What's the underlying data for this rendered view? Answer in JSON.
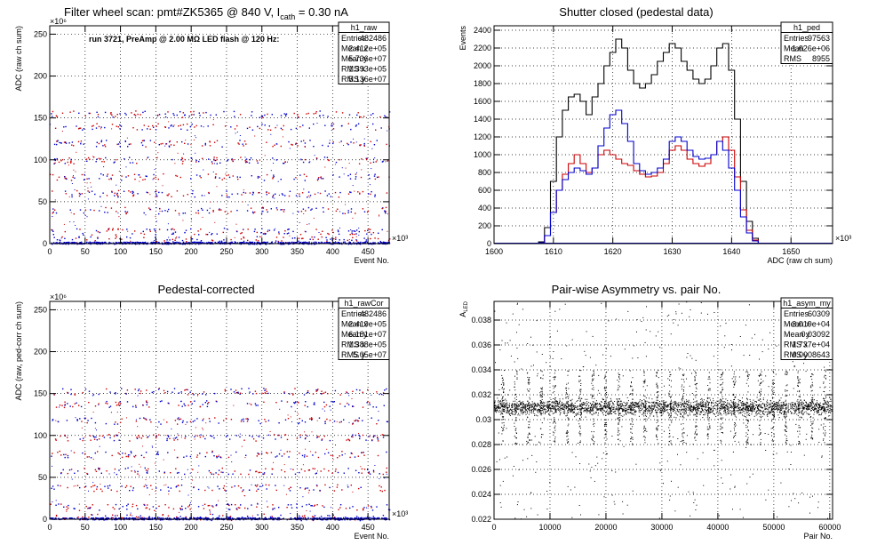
{
  "chart_data": [
    {
      "type": "scatter",
      "title": "Filter wheel scan: pmt#ZK5365 @   840 V, I",
      "title_sub": "cath",
      "title_tail": " = 0.30 nA",
      "annotation": "run 3721, PreAmp @ 2.00 MΩ LED flash @  120 Hz:",
      "ylabel": "ADC (raw ch sum)",
      "xlabel": "Event No.",
      "x_exponent": "×10³",
      "y_exponent": "×10⁶",
      "xlim": [
        0,
        480
      ],
      "ylim": [
        0,
        260
      ],
      "x_ticks": [
        0,
        50,
        100,
        150,
        200,
        250,
        300,
        350,
        400,
        450
      ],
      "y_ticks": [
        0,
        50,
        100,
        150,
        200,
        250
      ],
      "grid": true,
      "stats": {
        "name": "h1_raw",
        "rows": [
          [
            "Entries",
            "482486"
          ],
          [
            "Mean x",
            "2.412e+05"
          ],
          [
            "Mean y",
            "5.736e+07"
          ],
          [
            "RMS x",
            "1.393e+05"
          ],
          [
            "RMS y",
            "5.136e+07"
          ]
        ]
      },
      "levels": [
        5,
        15,
        40,
        60,
        80,
        100,
        120,
        140,
        155
      ],
      "series_colors": [
        "#cc0000",
        "#0000cc"
      ]
    },
    {
      "type": "line",
      "title": "Shutter closed (pedestal data)",
      "ylabel": "Events",
      "xlabel": "ADC (raw ch sum)",
      "x_exponent": "×10³",
      "xlim": [
        1600,
        1657
      ],
      "ylim": [
        0,
        2450
      ],
      "x_ticks": [
        1600,
        1610,
        1620,
        1630,
        1640,
        1650
      ],
      "y_ticks": [
        0,
        200,
        400,
        600,
        800,
        1000,
        1200,
        1400,
        1600,
        1800,
        2000,
        2200,
        2400
      ],
      "grid": true,
      "stats": {
        "name": "h1_ped",
        "rows": [
          [
            "Entries",
            "97563"
          ],
          [
            "Mean",
            "1.626e+06"
          ],
          [
            "RMS",
            "8955"
          ]
        ]
      },
      "series": [
        {
          "color": "#000000",
          "x": [
            1601,
            1602,
            1603,
            1604,
            1605,
            1606,
            1607,
            1608,
            1609,
            1610,
            1611,
            1612,
            1613,
            1614,
            1615,
            1616,
            1617,
            1618,
            1619,
            1620,
            1621,
            1622,
            1623,
            1624,
            1625,
            1626,
            1627,
            1628,
            1629,
            1630,
            1631,
            1632,
            1633,
            1634,
            1635,
            1636,
            1637,
            1638,
            1639,
            1640,
            1641,
            1642,
            1643,
            1644,
            1645,
            1646,
            1647,
            1648,
            1649,
            1650,
            1651,
            1652,
            1653,
            1654,
            1655,
            1656
          ],
          "values": [
            0,
            0,
            0,
            0,
            0,
            0,
            0,
            20,
            180,
            700,
            1200,
            1500,
            1650,
            1680,
            1600,
            1450,
            1650,
            1800,
            2000,
            2150,
            2300,
            2200,
            1950,
            1800,
            1750,
            1800,
            1900,
            2050,
            2150,
            2250,
            2200,
            2050,
            1950,
            1850,
            1800,
            1850,
            2000,
            2200,
            2250,
            1950,
            1400,
            700,
            250,
            60,
            5,
            0,
            0,
            0,
            0,
            0,
            0,
            0,
            0,
            0,
            0,
            0
          ]
        },
        {
          "color": "#cc0000",
          "x": [
            1601,
            1602,
            1603,
            1604,
            1605,
            1606,
            1607,
            1608,
            1609,
            1610,
            1611,
            1612,
            1613,
            1614,
            1615,
            1616,
            1617,
            1618,
            1619,
            1620,
            1621,
            1622,
            1623,
            1624,
            1625,
            1626,
            1627,
            1628,
            1629,
            1630,
            1631,
            1632,
            1633,
            1634,
            1635,
            1636,
            1637,
            1638,
            1639,
            1640,
            1641,
            1642,
            1643,
            1644,
            1645,
            1646,
            1647,
            1648,
            1649,
            1650,
            1651,
            1652,
            1653,
            1654,
            1655,
            1656
          ],
          "values": [
            0,
            0,
            0,
            0,
            0,
            0,
            0,
            10,
            90,
            350,
            600,
            780,
            900,
            1000,
            900,
            800,
            850,
            1000,
            1050,
            1000,
            950,
            900,
            880,
            820,
            780,
            750,
            760,
            800,
            900,
            1050,
            1100,
            1050,
            950,
            900,
            870,
            900,
            1000,
            1150,
            1200,
            1050,
            750,
            380,
            150,
            40,
            5,
            0,
            0,
            0,
            0,
            0,
            0,
            0,
            0,
            0,
            0,
            0
          ]
        },
        {
          "color": "#0000cc",
          "x": [
            1601,
            1602,
            1603,
            1604,
            1605,
            1606,
            1607,
            1608,
            1609,
            1610,
            1611,
            1612,
            1613,
            1614,
            1615,
            1616,
            1617,
            1618,
            1619,
            1620,
            1621,
            1622,
            1623,
            1624,
            1625,
            1626,
            1627,
            1628,
            1629,
            1630,
            1631,
            1632,
            1633,
            1634,
            1635,
            1636,
            1637,
            1638,
            1639,
            1640,
            1641,
            1642,
            1643,
            1644,
            1645,
            1646,
            1647,
            1648,
            1649,
            1650,
            1651,
            1652,
            1653,
            1654,
            1655,
            1656
          ],
          "values": [
            0,
            0,
            0,
            0,
            0,
            0,
            0,
            10,
            90,
            350,
            600,
            720,
            800,
            850,
            820,
            780,
            850,
            1100,
            1300,
            1450,
            1500,
            1350,
            1150,
            900,
            820,
            780,
            800,
            850,
            950,
            1150,
            1200,
            1150,
            1050,
            980,
            950,
            960,
            1000,
            1150,
            1050,
            850,
            600,
            300,
            120,
            30,
            5,
            0,
            0,
            0,
            0,
            0,
            0,
            0,
            0,
            0,
            0,
            0
          ]
        }
      ]
    },
    {
      "type": "scatter",
      "title": "Pedestal-corrected",
      "ylabel": "ADC (raw, ped-corr ch sum)",
      "xlabel": "Event No.",
      "x_exponent": "×10³",
      "y_exponent": "×10⁶",
      "xlim": [
        0,
        480
      ],
      "ylim": [
        0,
        260
      ],
      "x_ticks": [
        0,
        50,
        100,
        150,
        200,
        250,
        300,
        350,
        400,
        450
      ],
      "y_ticks": [
        0,
        50,
        100,
        150,
        200,
        250
      ],
      "grid": true,
      "stats": {
        "name": "h1_rawCor",
        "rows": [
          [
            "Entries",
            "482486"
          ],
          [
            "Mean x",
            "2.419e+05"
          ],
          [
            "Mean y",
            "6.181e+07"
          ],
          [
            "RMS x",
            "1.388e+05"
          ],
          [
            "RMS y",
            "5.05e+07"
          ]
        ]
      },
      "levels": [
        3,
        15,
        38,
        58,
        78,
        98,
        118,
        138,
        153
      ],
      "series_colors": [
        "#cc0000",
        "#0000cc"
      ]
    },
    {
      "type": "scatter",
      "title": "Pair-wise Asymmetry vs. pair No.",
      "ylabel": "A",
      "ylabel_sub": "LED",
      "xlabel": "Pair No.",
      "xlim": [
        0,
        60500
      ],
      "ylim": [
        0.022,
        0.0395
      ],
      "x_ticks": [
        0,
        10000,
        20000,
        30000,
        40000,
        50000,
        60000
      ],
      "y_ticks": [
        0.022,
        0.024,
        0.026,
        0.028,
        0.03,
        0.032,
        0.034,
        0.036,
        0.038
      ],
      "grid": true,
      "stats": {
        "name": "h1_asym_my",
        "rows": [
          [
            "Entries",
            "60309"
          ],
          [
            "Mean x",
            "3.019e+04"
          ],
          [
            "Mean y",
            "0.03092"
          ],
          [
            "RMS x",
            "1.737e+04"
          ],
          [
            "RMS y",
            "0.0008643"
          ]
        ]
      },
      "band_center": 0.031,
      "series_colors": [
        "#000000"
      ]
    }
  ]
}
